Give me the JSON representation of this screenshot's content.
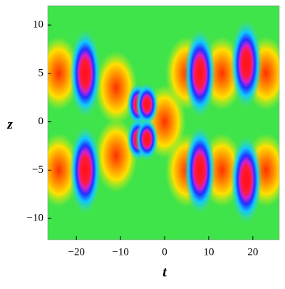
{
  "chart_data": {
    "type": "density",
    "xlabel": "t",
    "ylabel": "z",
    "xlim": [
      -26.5,
      26
    ],
    "ylim": [
      -12.2,
      12
    ],
    "xticks": [
      {
        "value": -20,
        "label": "−20"
      },
      {
        "value": -10,
        "label": "−10"
      },
      0,
      10,
      20
    ],
    "yticks": [
      {
        "value": -10,
        "label": "−10"
      },
      {
        "value": -5,
        "label": "−5"
      },
      0,
      5,
      10
    ],
    "background_color": "#3fe34a",
    "peaks": {
      "t": [
        -18,
        -18,
        -6,
        -4,
        -6,
        -4,
        8,
        8,
        18.5,
        18.5
      ],
      "z": [
        5,
        -5,
        1.8,
        1.8,
        -1.8,
        -1.8,
        5,
        -5,
        6,
        -6
      ]
    },
    "ridges": {
      "t": [
        -24,
        -24,
        -11,
        -11,
        0,
        5,
        5,
        13,
        13,
        23,
        23
      ],
      "z": [
        5,
        -5,
        3.5,
        -3.5,
        0,
        5,
        -5,
        5,
        -5,
        5,
        -5
      ]
    }
  }
}
